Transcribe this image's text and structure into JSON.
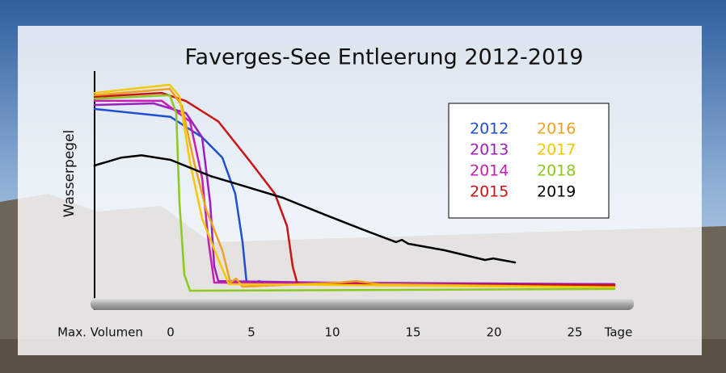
{
  "chart_data": {
    "type": "line",
    "title": "Faverges-See Entleerung 2012-2019",
    "y_label": "Wasserpegel",
    "x_start_label": "Max. Volumen",
    "x_unit_label": "Tage",
    "xlim": [
      -4.7,
      28.6
    ],
    "xticks": [
      0,
      5,
      10,
      15,
      20,
      25
    ],
    "ylim": [
      0,
      100
    ],
    "series": [
      {
        "name": "2012",
        "color": "#1f4fd0",
        "x": [
          -4.7,
          0,
          1.95,
          3.2,
          4,
          4.45,
          4.7,
          5.2,
          5.45,
          6,
          27.45
        ],
        "values": [
          87.5,
          84,
          75,
          66,
          50,
          28.6,
          10.7,
          10,
          11.4,
          10.4,
          10
        ]
      },
      {
        "name": "2013",
        "color": "#9b1fc0",
        "x": [
          -4.7,
          -1.05,
          0.95,
          1.95,
          2.45,
          2.7,
          2.95,
          9.45,
          27.45
        ],
        "values": [
          89.3,
          90,
          85.7,
          75,
          46,
          17.9,
          11.4,
          10.7,
          10
        ]
      },
      {
        "name": "2014",
        "color": "#c81eb0",
        "x": [
          -4.7,
          -0.55,
          1.2,
          1.95,
          2.35,
          2.7,
          27.45
        ],
        "values": [
          91.1,
          91.1,
          82,
          57,
          28.6,
          10.7,
          9.3
        ]
      },
      {
        "name": "2015",
        "color": "#c81414",
        "x": [
          -4.7,
          -0.55,
          0.95,
          2.95,
          4.95,
          6.45,
          7.2,
          7.55,
          7.85,
          27.45
        ],
        "values": [
          92.9,
          94.6,
          91,
          82,
          64,
          50,
          35.7,
          17.9,
          10,
          9.6
        ]
      },
      {
        "name": "2016",
        "color": "#f0a020",
        "x": [
          -4.7,
          -0.05,
          0.7,
          1.45,
          2.2,
          3.2,
          3.7,
          4.05,
          4.45,
          10.45,
          11.45,
          12.95,
          27.45
        ],
        "values": [
          93.6,
          96.4,
          89,
          64,
          43,
          25,
          10.7,
          12.5,
          8.9,
          10.7,
          11.4,
          10,
          8.6
        ]
      },
      {
        "name": "2017",
        "color": "#f5c800",
        "x": [
          -4.7,
          -0.05,
          0.55,
          1.2,
          1.95,
          2.95,
          3.6,
          27.45
        ],
        "values": [
          94.6,
          98.2,
          93,
          64,
          39,
          21,
          10,
          8.6
        ]
      },
      {
        "name": "2018",
        "color": "#8cc81e",
        "x": [
          -4.7,
          -0.05,
          0.35,
          0.55,
          0.85,
          1.2,
          27.45
        ],
        "values": [
          92,
          93.6,
          85.7,
          46,
          14.3,
          7.1,
          7.9
        ]
      },
      {
        "name": "2019",
        "color": "#000000",
        "x": [
          -4.7,
          -3.05,
          -1.8,
          0,
          2.45,
          4.45,
          6.95,
          9.45,
          11.95,
          13.95,
          14.3,
          14.7,
          16.95,
          19.45,
          19.95,
          21.3
        ],
        "values": [
          62.5,
          66,
          67,
          65,
          57.9,
          53.6,
          48.2,
          41,
          34,
          28.6,
          29.6,
          27.9,
          25,
          20.7,
          21.4,
          19.6
        ]
      }
    ]
  }
}
